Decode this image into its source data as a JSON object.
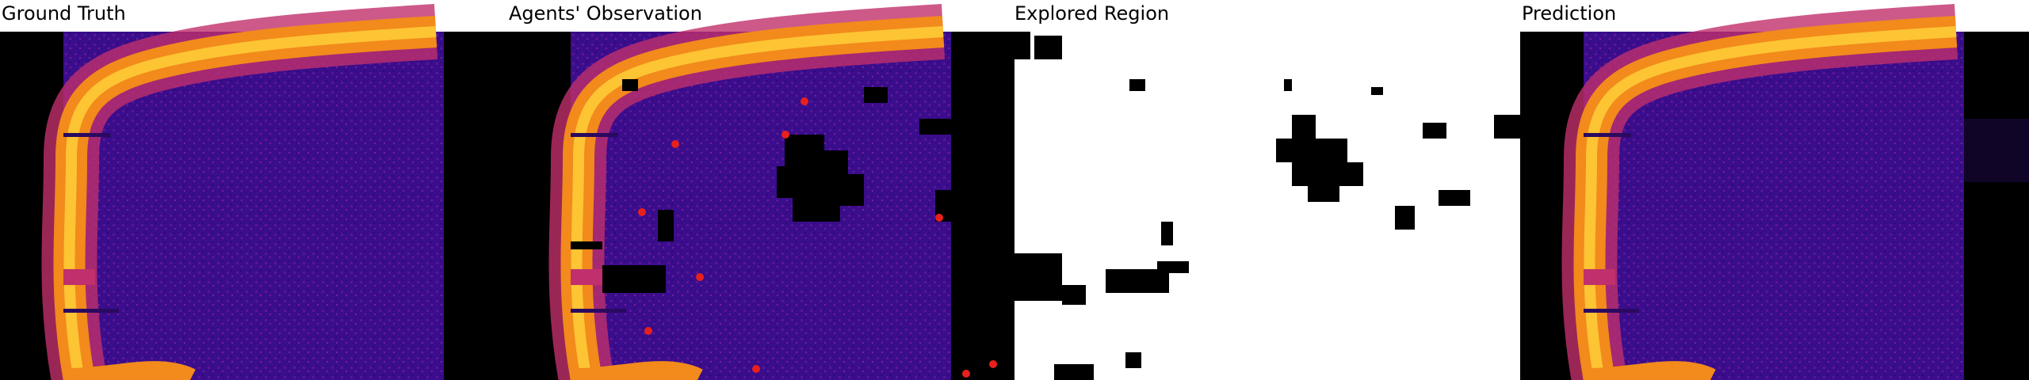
{
  "panels": [
    {
      "title": "Ground Truth"
    },
    {
      "title": "Agents' Observation"
    },
    {
      "title": "Explored Region"
    },
    {
      "title": "Prediction"
    }
  ]
}
